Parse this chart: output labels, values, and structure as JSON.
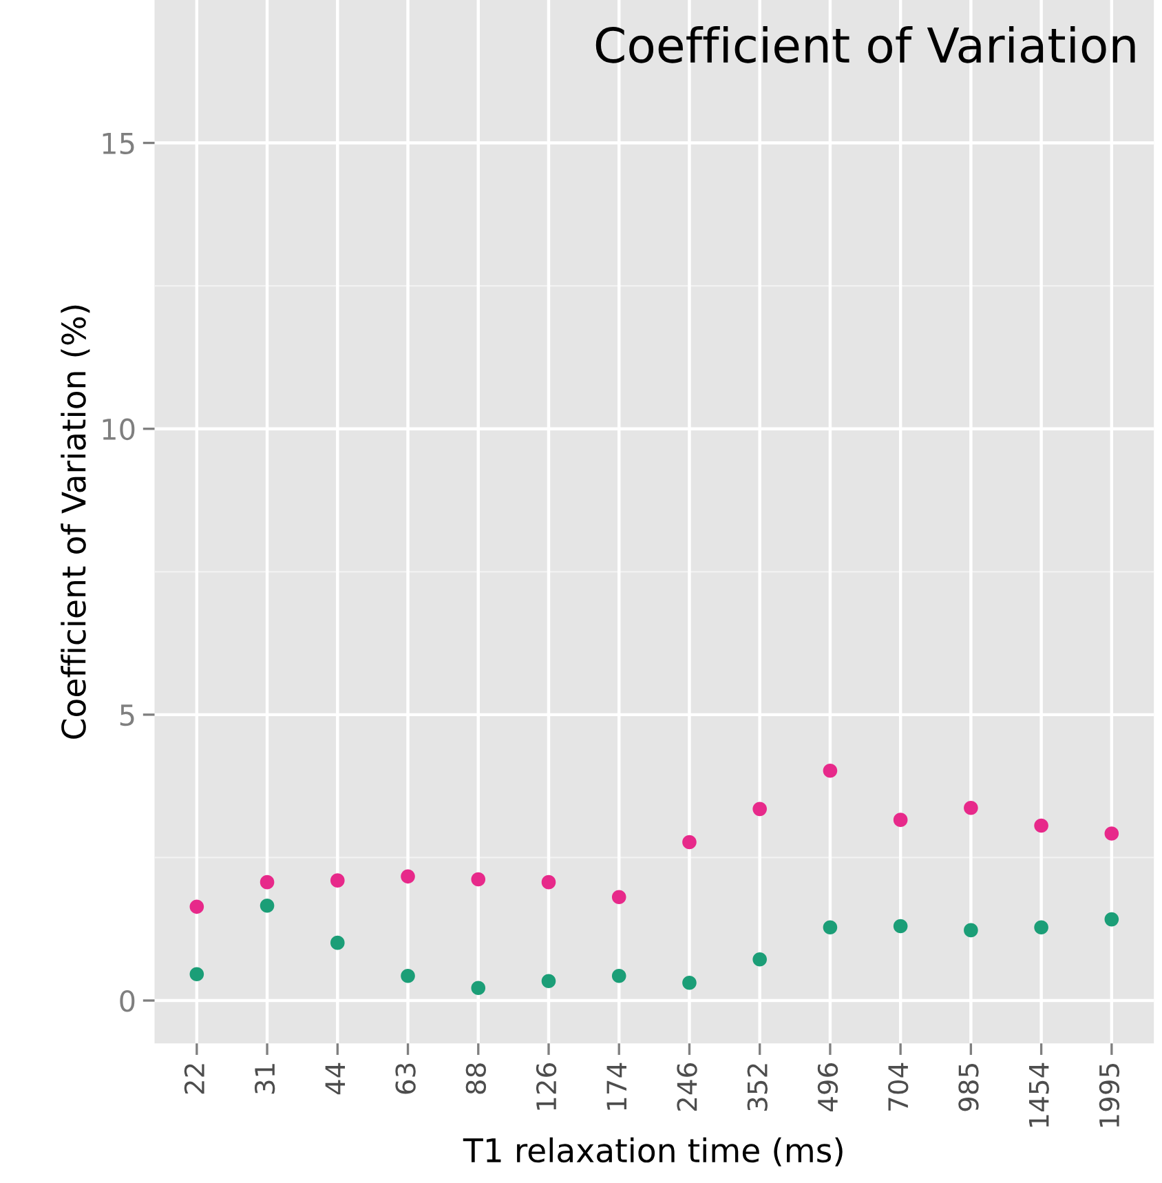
{
  "chart_data": {
    "type": "scatter",
    "title": "Coefficient of Variation",
    "xlabel": "T1 relaxation time (ms)",
    "ylabel": "Coefficient of Variation (%)",
    "categories": [
      "22",
      "31",
      "44",
      "63",
      "88",
      "126",
      "174",
      "246",
      "352",
      "496",
      "704",
      "985",
      "1454",
      "1995"
    ],
    "series": [
      {
        "color": "#e7298a",
        "values": [
          1.64,
          2.07,
          2.1,
          2.17,
          2.12,
          2.07,
          1.81,
          2.77,
          3.35,
          4.02,
          3.16,
          3.37,
          3.06,
          2.92
        ]
      },
      {
        "color": "#1b9e77",
        "values": [
          0.46,
          1.66,
          1.01,
          0.43,
          0.22,
          0.34,
          0.43,
          0.31,
          0.72,
          1.28,
          1.3,
          1.23,
          1.28,
          1.42
        ]
      }
    ],
    "ylim": [
      -0.75,
      17.5
    ],
    "yticks": [
      0,
      5,
      10,
      15
    ],
    "grid": true,
    "marker": "circle",
    "legend": false
  }
}
